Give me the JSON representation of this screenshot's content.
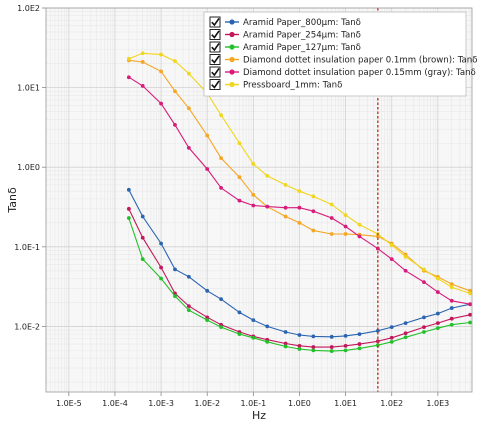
{
  "chart_data": {
    "type": "line",
    "xlabel": "Hz",
    "ylabel": "Tanδ",
    "x_scale": "log",
    "y_scale": "log",
    "xlim": [
      3.2e-06,
      5500
    ],
    "ylim": [
      0.0015,
      100
    ],
    "x_ticks": [
      "1.0E-5",
      "1.0E-4",
      "1.0E-3",
      "1.0E-2",
      "1.0E-1",
      "1.0E0",
      "1.0E1",
      "1.0E2",
      "1.0E3"
    ],
    "y_ticks": [
      "1.0E-2",
      "1.0E-1",
      "1.0E0",
      "1.0E1",
      "1.0E2"
    ],
    "grid": true,
    "legend_position": "top-right",
    "marker_line_x": 50,
    "marker_line_color": "#c0392b",
    "series": [
      {
        "name": "Aramid Paper_800μm: Tanδ",
        "color": "#2a64b0",
        "points": [
          [
            0.0002,
            0.52
          ],
          [
            0.0004,
            0.24
          ],
          [
            0.001,
            0.11
          ],
          [
            0.002,
            0.052
          ],
          [
            0.004,
            0.042
          ],
          [
            0.01,
            0.028
          ],
          [
            0.02,
            0.022
          ],
          [
            0.05,
            0.015
          ],
          [
            0.1,
            0.012
          ],
          [
            0.2,
            0.01
          ],
          [
            0.5,
            0.0085
          ],
          [
            1,
            0.0078
          ],
          [
            2,
            0.0075
          ],
          [
            5,
            0.0074
          ],
          [
            10,
            0.0076
          ],
          [
            20,
            0.008
          ],
          [
            50,
            0.0088
          ],
          [
            100,
            0.0098
          ],
          [
            200,
            0.011
          ],
          [
            500,
            0.013
          ],
          [
            1000,
            0.0145
          ],
          [
            2000,
            0.017
          ],
          [
            5000,
            0.019
          ]
        ]
      },
      {
        "name": "Aramid Paper_254μm: Tanδ",
        "color": "#c2185b",
        "points": [
          [
            0.0002,
            0.3
          ],
          [
            0.0004,
            0.13
          ],
          [
            0.001,
            0.055
          ],
          [
            0.002,
            0.026
          ],
          [
            0.004,
            0.018
          ],
          [
            0.01,
            0.013
          ],
          [
            0.02,
            0.0105
          ],
          [
            0.05,
            0.0085
          ],
          [
            0.1,
            0.0075
          ],
          [
            0.2,
            0.0068
          ],
          [
            0.5,
            0.0061
          ],
          [
            1,
            0.0057
          ],
          [
            2,
            0.0055
          ],
          [
            5,
            0.0055
          ],
          [
            10,
            0.0057
          ],
          [
            20,
            0.006
          ],
          [
            50,
            0.0065
          ],
          [
            100,
            0.0072
          ],
          [
            200,
            0.0082
          ],
          [
            500,
            0.0098
          ],
          [
            1000,
            0.011
          ],
          [
            2000,
            0.0125
          ],
          [
            5000,
            0.014
          ]
        ]
      },
      {
        "name": "Aramid Paper_127μm: Tanδ",
        "color": "#22c02a",
        "points": [
          [
            0.0002,
            0.23
          ],
          [
            0.0004,
            0.07
          ],
          [
            0.001,
            0.04
          ],
          [
            0.002,
            0.024
          ],
          [
            0.004,
            0.016
          ],
          [
            0.01,
            0.012
          ],
          [
            0.02,
            0.0098
          ],
          [
            0.05,
            0.008
          ],
          [
            0.1,
            0.0072
          ],
          [
            0.2,
            0.0064
          ],
          [
            0.5,
            0.0056
          ],
          [
            1,
            0.0052
          ],
          [
            2,
            0.005
          ],
          [
            5,
            0.0049
          ],
          [
            10,
            0.005
          ],
          [
            20,
            0.0053
          ],
          [
            50,
            0.0058
          ],
          [
            100,
            0.0064
          ],
          [
            200,
            0.0073
          ],
          [
            500,
            0.0085
          ],
          [
            1000,
            0.0095
          ],
          [
            2000,
            0.0105
          ],
          [
            5000,
            0.0112
          ]
        ]
      },
      {
        "name": "Diamond dottet insulation paper 0.1mm (brown): Tanδ",
        "color": "#f5a623",
        "points": [
          [
            0.0002,
            22
          ],
          [
            0.0004,
            21
          ],
          [
            0.001,
            16
          ],
          [
            0.002,
            9
          ],
          [
            0.004,
            5.5
          ],
          [
            0.01,
            2.5
          ],
          [
            0.02,
            1.3
          ],
          [
            0.05,
            0.75
          ],
          [
            0.1,
            0.45
          ],
          [
            0.2,
            0.32
          ],
          [
            0.5,
            0.24
          ],
          [
            1,
            0.2
          ],
          [
            2,
            0.16
          ],
          [
            5,
            0.145
          ],
          [
            10,
            0.145
          ],
          [
            20,
            0.142
          ],
          [
            50,
            0.135
          ],
          [
            100,
            0.11
          ],
          [
            200,
            0.08
          ],
          [
            500,
            0.05
          ],
          [
            1000,
            0.042
          ],
          [
            2000,
            0.034
          ],
          [
            5000,
            0.028
          ]
        ]
      },
      {
        "name": "Diamond dottet insulation paper 0.15mm (gray): Tanδ",
        "color": "#d81b7a",
        "points": [
          [
            0.0002,
            13.5
          ],
          [
            0.0004,
            10.5
          ],
          [
            0.001,
            6.3
          ],
          [
            0.002,
            3.4
          ],
          [
            0.004,
            1.75
          ],
          [
            0.01,
            0.95
          ],
          [
            0.02,
            0.55
          ],
          [
            0.05,
            0.38
          ],
          [
            0.1,
            0.33
          ],
          [
            0.2,
            0.32
          ],
          [
            0.5,
            0.31
          ],
          [
            1,
            0.31
          ],
          [
            2,
            0.28
          ],
          [
            5,
            0.23
          ],
          [
            10,
            0.18
          ],
          [
            20,
            0.135
          ],
          [
            50,
            0.095
          ],
          [
            100,
            0.07
          ],
          [
            200,
            0.05
          ],
          [
            500,
            0.036
          ],
          [
            1000,
            0.027
          ],
          [
            2000,
            0.021
          ],
          [
            5000,
            0.019
          ]
        ]
      },
      {
        "name": "Pressboard_1mm: Tanδ",
        "color": "#f0d61e",
        "points": [
          [
            0.0002,
            23
          ],
          [
            0.0004,
            27
          ],
          [
            0.001,
            26
          ],
          [
            0.002,
            21.5
          ],
          [
            0.004,
            15
          ],
          [
            0.01,
            8.5
          ],
          [
            0.02,
            4.5
          ],
          [
            0.05,
            2
          ],
          [
            0.1,
            1.1
          ],
          [
            0.2,
            0.78
          ],
          [
            0.5,
            0.6
          ],
          [
            1,
            0.5
          ],
          [
            2,
            0.43
          ],
          [
            5,
            0.34
          ],
          [
            10,
            0.25
          ],
          [
            20,
            0.19
          ],
          [
            50,
            0.145
          ],
          [
            100,
            0.105
          ],
          [
            200,
            0.075
          ],
          [
            500,
            0.052
          ],
          [
            1000,
            0.04
          ],
          [
            2000,
            0.031
          ],
          [
            5000,
            0.026
          ]
        ]
      }
    ]
  }
}
